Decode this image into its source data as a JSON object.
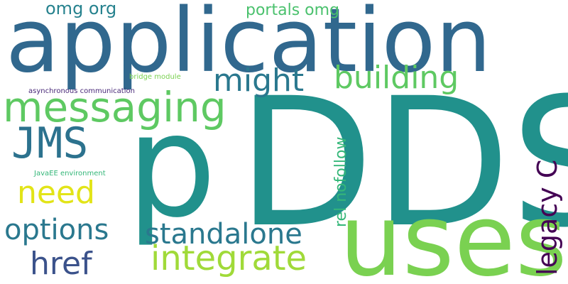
{
  "words": [
    {
      "id": "dds",
      "text": "DDS",
      "color": "#21918c"
    },
    {
      "id": "application",
      "text": "application",
      "color": "#31688e"
    },
    {
      "id": "p",
      "text": "p",
      "color": "#21918c"
    },
    {
      "id": "uses",
      "text": "uses",
      "color": "#7ad151"
    },
    {
      "id": "messaging",
      "text": "messaging",
      "color": "#5ec962"
    },
    {
      "id": "jms",
      "text": "JMS",
      "color": "#2c728e"
    },
    {
      "id": "might",
      "text": "might",
      "color": "#2a788e"
    },
    {
      "id": "building",
      "text": "building",
      "color": "#5ec962"
    },
    {
      "id": "standalone",
      "text": "standalone",
      "color": "#2a788e"
    },
    {
      "id": "integrate",
      "text": "integrate",
      "color": "#a0da39"
    },
    {
      "id": "options",
      "text": "options",
      "color": "#2a788e"
    },
    {
      "id": "need",
      "text": "need",
      "color": "#e2e418"
    },
    {
      "id": "href",
      "text": "href",
      "color": "#3b528b"
    },
    {
      "id": "legacy_c",
      "text": "legacy C",
      "color": "#440154"
    },
    {
      "id": "rel_nofollow",
      "text": "rel nofollow",
      "color": "#35b779"
    },
    {
      "id": "omg_org",
      "text": "omg org",
      "color": "#26828e"
    },
    {
      "id": "portals_omg",
      "text": "portals omg",
      "color": "#4ac16d"
    },
    {
      "id": "bridge_module",
      "text": "bridge module",
      "color": "#7ad151"
    },
    {
      "id": "async_comm",
      "text": "asynchronous communication",
      "color": "#482878"
    },
    {
      "id": "javaee_env",
      "text": "JavaEE environment",
      "color": "#35b779"
    }
  ]
}
